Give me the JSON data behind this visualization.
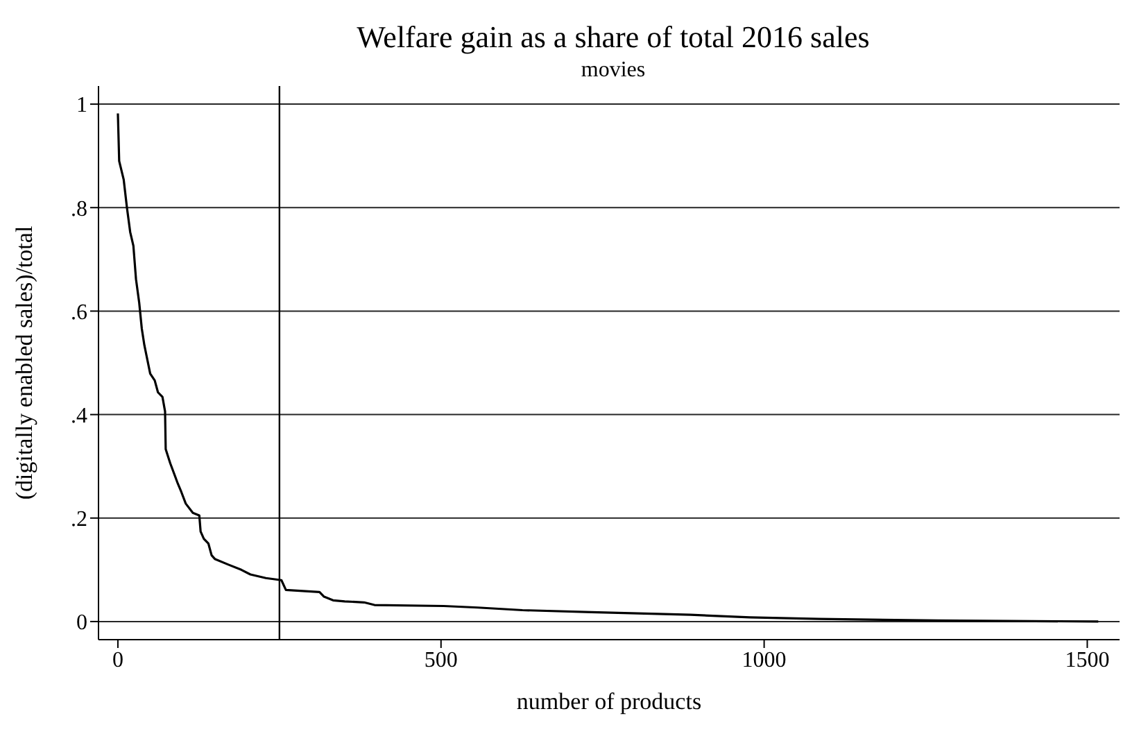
{
  "chart_data": {
    "type": "line",
    "title": "Welfare gain as a share of total 2016 sales",
    "subtitle": "movies",
    "xlabel": "number of products",
    "ylabel": "(digitally enabled sales)/total",
    "series": [
      {
        "color": "#000000",
        "x": [
          0,
          2,
          9,
          14,
          19,
          24,
          28,
          33,
          37,
          41,
          50,
          57,
          62,
          69,
          73,
          74,
          81,
          92,
          98,
          105,
          116,
          126,
          128,
          133,
          140,
          145,
          150,
          171,
          191,
          205,
          229,
          253,
          260,
          312,
          319,
          333,
          351,
          381,
          397,
          504,
          557,
          626,
          733,
          886,
          978,
          1085,
          1268,
          1517
        ],
        "values": [
          0.982,
          0.89,
          0.854,
          0.8,
          0.753,
          0.726,
          0.662,
          0.616,
          0.566,
          0.534,
          0.479,
          0.466,
          0.443,
          0.434,
          0.406,
          0.333,
          0.306,
          0.269,
          0.251,
          0.228,
          0.21,
          0.205,
          0.174,
          0.16,
          0.151,
          0.128,
          0.121,
          0.11,
          0.1,
          0.091,
          0.084,
          0.08,
          0.061,
          0.057,
          0.048,
          0.041,
          0.039,
          0.037,
          0.032,
          0.03,
          0.027,
          0.022,
          0.018,
          0.013,
          0.008,
          0.005,
          0.002,
          0
        ]
      }
    ],
    "xlim": [
      -30,
      1550
    ],
    "xticks": [
      0,
      500,
      1000,
      1500
    ],
    "ylim": [
      -0.035,
      1.035
    ],
    "yticks": [
      {
        "value": 0,
        "label": "0"
      },
      {
        "value": 0.2,
        "label": ".2"
      },
      {
        "value": 0.4,
        "label": ".4"
      },
      {
        "value": 0.6,
        "label": ".6"
      },
      {
        "value": 0.8,
        "label": ".8"
      },
      {
        "value": 1,
        "label": "1"
      }
    ],
    "grid": "y",
    "marker": "none",
    "line_style": "solid",
    "ref_lines": [
      {
        "axis": "x",
        "value": 250,
        "color": "#000000"
      }
    ]
  }
}
